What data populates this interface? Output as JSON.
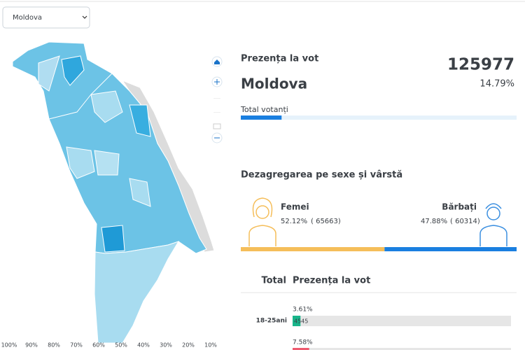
{
  "filter": {
    "selected": "Moldova"
  },
  "map": {
    "legend": [
      "100%",
      "90%",
      "80%",
      "70%",
      "60%",
      "50%",
      "40%",
      "30%",
      "20%",
      "10%"
    ]
  },
  "turnout": {
    "title": "Prezența la vot",
    "count": "125977",
    "region": "Moldova",
    "percent": "14.79%",
    "bar_label": "Total votanți"
  },
  "gender": {
    "title": "Dezagregarea pe sexe și vârstă",
    "female": {
      "label": "Femei",
      "percent": "52.12%",
      "count": "( 65663)"
    },
    "male": {
      "label": "Bărbați",
      "percent": "47.88%",
      "count": "( 60314)"
    }
  },
  "age": {
    "headers": [
      "Total",
      "Prezența la vot"
    ],
    "rows": [
      {
        "group": "18-25ani",
        "percent": "3.61%",
        "count": "4545"
      },
      {
        "percent": "7.58%"
      }
    ]
  }
}
